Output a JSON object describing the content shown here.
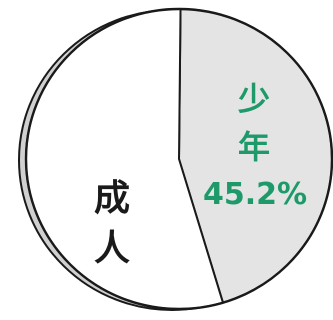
{
  "chart_data": {
    "type": "pie",
    "slices": [
      {
        "label_lines": [
          "少",
          "年"
        ],
        "value_text": "45.2%",
        "value": 45.2,
        "color": "#e4e4e4",
        "label_color": "#1e9a6a"
      },
      {
        "label_lines": [
          "成",
          "人"
        ],
        "value_text": "",
        "value": 54.8,
        "color": "#ffffff",
        "label_color": "#1a1a1a"
      }
    ],
    "start": "top",
    "direction": "clockwise",
    "style": {
      "outline_color": "#1a1a1a",
      "depth_edge_color": "#d0d0d0"
    }
  }
}
